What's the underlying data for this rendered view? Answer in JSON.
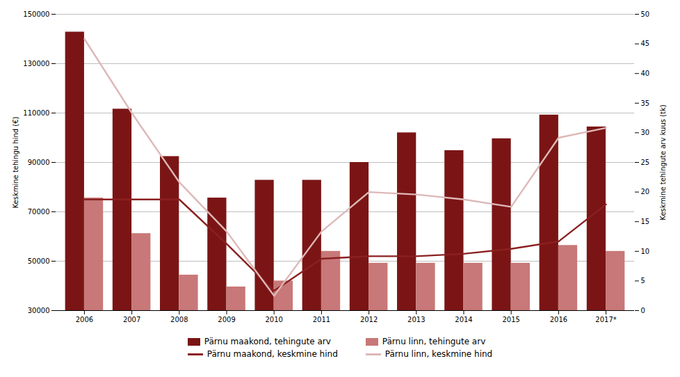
{
  "chart_data": {
    "type": "bar",
    "categories": [
      "2006",
      "2007",
      "2008",
      "2009",
      "2010",
      "2011",
      "2012",
      "2013",
      "2014",
      "2015",
      "2016",
      "2017*"
    ],
    "series": [
      {
        "name": "Pärnu maakond, tehingute arv",
        "type": "bar",
        "axis": "y2",
        "color": "#7B1515",
        "values": [
          47,
          34,
          26,
          19,
          22,
          22,
          25,
          30,
          27,
          29,
          33,
          31
        ]
      },
      {
        "name": "Pärnu linn, tehingute arv",
        "type": "bar",
        "axis": "y2",
        "color": "#C87878",
        "values": [
          19,
          13,
          6,
          4,
          5,
          10,
          8,
          8,
          8,
          8,
          11,
          10
        ]
      },
      {
        "name": "Pärnu maakond, keskmine hind",
        "type": "line",
        "color": "#8B2020",
        "values": [
          75000,
          75000,
          75000,
          57000,
          38000,
          51000,
          52000,
          52000,
          53000,
          55000,
          58000,
          73000
        ]
      },
      {
        "name": "Pärnu linn, keskmine hind",
        "type": "line",
        "color": "#DEB8B8",
        "values": [
          140000,
          110000,
          82000,
          62000,
          36000,
          62000,
          78000,
          77000,
          75000,
          72000,
          100000,
          104000
        ]
      }
    ],
    "ylabel": "Keskmine tehingu hind (€)",
    "y2label": "Keskmine tehingute arv kuus (tk)",
    "ylim": [
      30000,
      150000
    ],
    "yticks": [
      30000,
      50000,
      70000,
      90000,
      110000,
      130000,
      150000
    ],
    "y2lim": [
      0,
      50
    ],
    "y2ticks": [
      0,
      5,
      10,
      15,
      20,
      25,
      30,
      35,
      40,
      45,
      50
    ],
    "grid": true,
    "legend": "bottom"
  }
}
